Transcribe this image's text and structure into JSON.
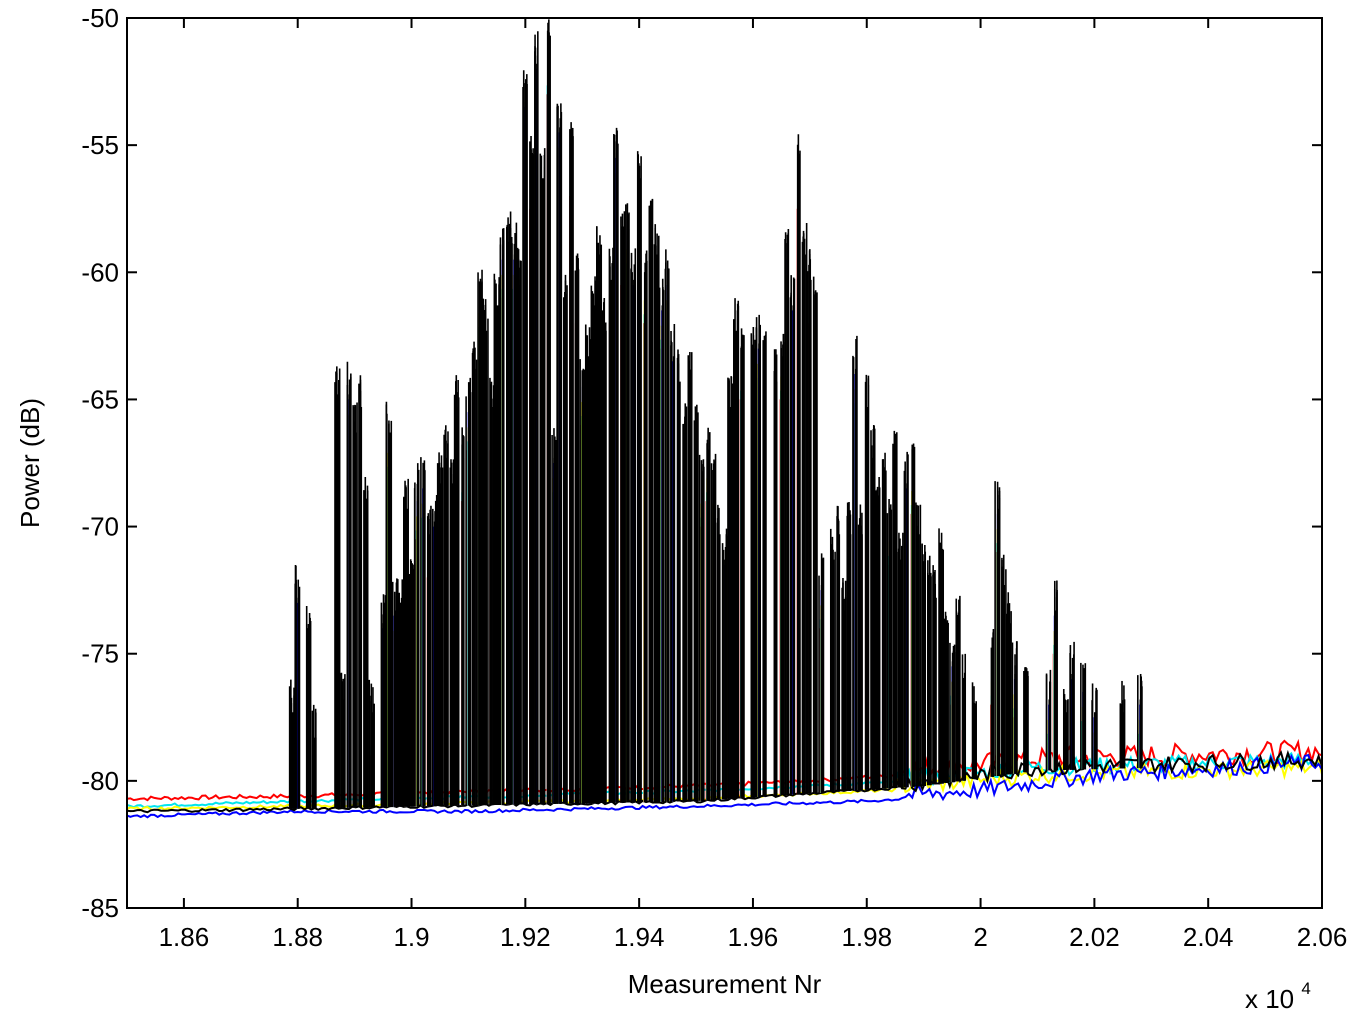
{
  "chart_data": {
    "type": "line",
    "title": "",
    "xlabel": "Measurement Nr",
    "ylabel": "Power (dB)",
    "x_multiplier_label": "x 10",
    "x_multiplier_exponent": "4",
    "xlim": [
      1.85,
      2.06
    ],
    "ylim": [
      -85,
      -50
    ],
    "x_scale": 10000,
    "grid": true,
    "x_tick_values": [
      1.86,
      1.88,
      1.9,
      1.92,
      1.94,
      1.96,
      1.98,
      2,
      2.02,
      2.04,
      2.06
    ],
    "x_tick_labels": [
      "1.86",
      "1.88",
      "1.9",
      "1.92",
      "1.94",
      "1.96",
      "1.98",
      "2",
      "2.02",
      "2.04",
      "2.06"
    ],
    "y_tick_values": [
      -50,
      -55,
      -60,
      -65,
      -70,
      -75,
      -80,
      -85
    ],
    "y_tick_labels": [
      "-50",
      "-55",
      "-60",
      "-65",
      "-70",
      "-75",
      "-80",
      "-85"
    ],
    "series": [
      {
        "color": "#ff0000",
        "baseline": [
          [
            18500,
            -80.7
          ],
          [
            18790,
            -80.6
          ],
          [
            19500,
            -80.2
          ],
          [
            19700,
            -80.0
          ],
          [
            19900,
            -79.7
          ],
          [
            20100,
            -79.3
          ],
          [
            20600,
            -79.0
          ]
        ],
        "noise": 0.4
      },
      {
        "color": "#00e5ee",
        "baseline": [
          [
            18500,
            -81.0
          ],
          [
            18800,
            -80.8
          ],
          [
            19500,
            -80.4
          ],
          [
            19900,
            -80.0
          ],
          [
            20100,
            -79.6
          ],
          [
            20600,
            -79.3
          ]
        ],
        "noise": 0.3
      },
      {
        "color": "#ffff00",
        "baseline": [
          [
            18500,
            -81.1
          ],
          [
            18800,
            -81.0
          ],
          [
            19500,
            -80.7
          ],
          [
            19900,
            -80.3
          ],
          [
            20100,
            -79.9
          ],
          [
            20600,
            -79.6
          ]
        ],
        "noise": 0.3
      },
      {
        "color": "#0000ff",
        "baseline": [
          [
            18500,
            -81.4
          ],
          [
            18800,
            -81.2
          ],
          [
            19100,
            -81.2
          ],
          [
            19500,
            -81.0
          ],
          [
            19800,
            -80.8
          ],
          [
            20000,
            -80.5
          ],
          [
            20200,
            -79.9
          ],
          [
            20600,
            -79.4
          ]
        ],
        "noise": 0.3
      },
      {
        "color": "#000000",
        "baseline": [
          [
            18500,
            -81.2
          ],
          [
            18790,
            -81.1
          ],
          [
            19500,
            -80.8
          ],
          [
            19900,
            -80.2
          ],
          [
            20100,
            -79.6
          ],
          [
            20600,
            -79.3
          ]
        ],
        "noise": 0.3
      }
    ],
    "peaks": [
      [
        18790,
        -79.0
      ],
      [
        18800,
        -74.5
      ],
      [
        18820,
        -76.0
      ],
      [
        18830,
        -80.0
      ],
      [
        18870,
        -66.5
      ],
      [
        18880,
        -78.5
      ],
      [
        18890,
        -66.5
      ],
      [
        18900,
        -68.0
      ],
      [
        18910,
        -67.0
      ],
      [
        18920,
        -71.0
      ],
      [
        18930,
        -79.0
      ],
      [
        18950,
        -75.5
      ],
      [
        18960,
        -68.0
      ],
      [
        18970,
        -75.0
      ],
      [
        18980,
        -75.0
      ],
      [
        18990,
        -71.0
      ],
      [
        19000,
        -74.0
      ],
      [
        19010,
        -70.5
      ],
      [
        19020,
        -70.0
      ],
      [
        19030,
        -72.0
      ],
      [
        19040,
        -71.5
      ],
      [
        19050,
        -70.0
      ],
      [
        19060,
        -69.0
      ],
      [
        19070,
        -70.0
      ],
      [
        19080,
        -67.0
      ],
      [
        19090,
        -69.0
      ],
      [
        19100,
        -67.0
      ],
      [
        19110,
        -65.5
      ],
      [
        19120,
        -62.5
      ],
      [
        19130,
        -64.0
      ],
      [
        19140,
        -67.0
      ],
      [
        19150,
        -63.0
      ],
      [
        19160,
        -61.0
      ],
      [
        19170,
        -60.5
      ],
      [
        19180,
        -61.0
      ],
      [
        19190,
        -62.0
      ],
      [
        19200,
        -55.0
      ],
      [
        19210,
        -57.5
      ],
      [
        19220,
        -53.5
      ],
      [
        19230,
        -58.0
      ],
      [
        19240,
        -53.0
      ],
      [
        19250,
        -69.0
      ],
      [
        19260,
        -56.0
      ],
      [
        19270,
        -63.0
      ],
      [
        19280,
        -57.0
      ],
      [
        19290,
        -62.0
      ],
      [
        19300,
        -66.0
      ],
      [
        19310,
        -65.0
      ],
      [
        19320,
        -63.0
      ],
      [
        19330,
        -61.0
      ],
      [
        19340,
        -64.0
      ],
      [
        19350,
        -62.0
      ],
      [
        19360,
        -57.0
      ],
      [
        19370,
        -60.5
      ],
      [
        19380,
        -60.0
      ],
      [
        19390,
        -62.0
      ],
      [
        19400,
        -58.0
      ],
      [
        19410,
        -62.0
      ],
      [
        19420,
        -60.0
      ],
      [
        19430,
        -61.0
      ],
      [
        19440,
        -63.0
      ],
      [
        19450,
        -62.0
      ],
      [
        19460,
        -65.0
      ],
      [
        19470,
        -66.0
      ],
      [
        19480,
        -68.0
      ],
      [
        19490,
        -66.0
      ],
      [
        19500,
        -68.0
      ],
      [
        19510,
        -70.0
      ],
      [
        19520,
        -69.0
      ],
      [
        19530,
        -70.0
      ],
      [
        19540,
        -72.0
      ],
      [
        19550,
        -73.0
      ],
      [
        19560,
        -67.0
      ],
      [
        19570,
        -64.0
      ],
      [
        19580,
        -65.0
      ],
      [
        19600,
        -65.0
      ],
      [
        19610,
        -64.5
      ],
      [
        19620,
        -65.0
      ],
      [
        19640,
        -66.0
      ],
      [
        19650,
        -65.0
      ],
      [
        19660,
        -61.0
      ],
      [
        19670,
        -63.0
      ],
      [
        19680,
        -57.5
      ],
      [
        19690,
        -61.0
      ],
      [
        19700,
        -62.0
      ],
      [
        19710,
        -63.0
      ],
      [
        19720,
        -74.0
      ],
      [
        19740,
        -73.0
      ],
      [
        19750,
        -72.0
      ],
      [
        19760,
        -75.0
      ],
      [
        19770,
        -72.0
      ],
      [
        19780,
        -65.5
      ],
      [
        19790,
        -72.0
      ],
      [
        19800,
        -67.0
      ],
      [
        19810,
        -69.0
      ],
      [
        19820,
        -71.0
      ],
      [
        19830,
        -70.0
      ],
      [
        19840,
        -71.5
      ],
      [
        19850,
        -69.0
      ],
      [
        19860,
        -73.0
      ],
      [
        19870,
        -70.0
      ],
      [
        19880,
        -69.5
      ],
      [
        19890,
        -72.0
      ],
      [
        19900,
        -73.5
      ],
      [
        19910,
        -74.0
      ],
      [
        19920,
        -74.5
      ],
      [
        19930,
        -73.0
      ],
      [
        19940,
        -76.0
      ],
      [
        19950,
        -77.0
      ],
      [
        19960,
        -75.5
      ],
      [
        19970,
        -78.0
      ],
      [
        19990,
        -79.0
      ],
      [
        20020,
        -77.0
      ],
      [
        20030,
        -71.0
      ],
      [
        20040,
        -74.0
      ],
      [
        20050,
        -75.5
      ],
      [
        20060,
        -77.5
      ],
      [
        20080,
        -78.0
      ],
      [
        20120,
        -78.5
      ],
      [
        20130,
        -75.0
      ],
      [
        20150,
        -79.0
      ],
      [
        20160,
        -77.5
      ],
      [
        20180,
        -78.0
      ],
      [
        20200,
        -79.0
      ],
      [
        20250,
        -79.0
      ],
      [
        20280,
        -78.5
      ]
    ]
  }
}
